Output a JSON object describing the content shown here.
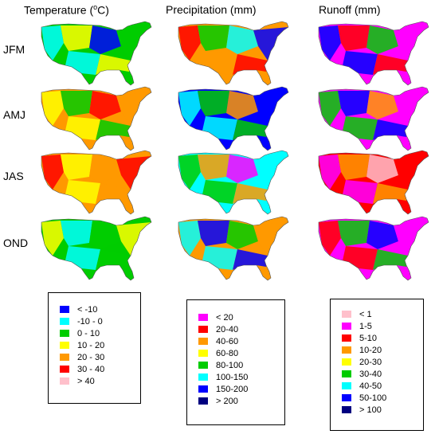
{
  "columns": [
    {
      "title": "Temperature (",
      "unit_sup": "o",
      "unit_tail": "C)"
    },
    {
      "title": "Precipitation (mm)"
    },
    {
      "title": "Runoff (mm)"
    }
  ],
  "rows": [
    "JFM",
    "AMJ",
    "JAS",
    "OND"
  ],
  "legends": [
    {
      "name": "temperature",
      "items": [
        {
          "label": "< -10",
          "color": "#0000ff"
        },
        {
          "label": "-10 - 0",
          "color": "#00ffff"
        },
        {
          "label": "0 - 10",
          "color": "#00cc00"
        },
        {
          "label": "10 - 20",
          "color": "#ffff00"
        },
        {
          "label": "20 - 30",
          "color": "#ff9900"
        },
        {
          "label": "30 - 40",
          "color": "#ff0000"
        },
        {
          "label": "> 40",
          "color": "#ffc0cb"
        }
      ]
    },
    {
      "name": "precipitation",
      "items": [
        {
          "label": "< 20",
          "color": "#ff00ff"
        },
        {
          "label": "20-40",
          "color": "#ff0000"
        },
        {
          "label": "40-60",
          "color": "#ff9900"
        },
        {
          "label": "60-80",
          "color": "#ffff00"
        },
        {
          "label": "80-100",
          "color": "#00cc00"
        },
        {
          "label": "100-150",
          "color": "#00ffff"
        },
        {
          "label": "150-200",
          "color": "#0000ff"
        },
        {
          "label": "> 200",
          "color": "#000080"
        }
      ]
    },
    {
      "name": "runoff",
      "items": [
        {
          "label": "< 1",
          "color": "#ffc0cb"
        },
        {
          "label": "1-5",
          "color": "#ff00ff"
        },
        {
          "label": "5-10",
          "color": "#ff0000"
        },
        {
          "label": "10-20",
          "color": "#ff9900"
        },
        {
          "label": "20-30",
          "color": "#ffff00"
        },
        {
          "label": "30-40",
          "color": "#00cc00"
        },
        {
          "label": "40-50",
          "color": "#00ffff"
        },
        {
          "label": "50-100",
          "color": "#0000ff"
        },
        {
          "label": "> 100",
          "color": "#000080"
        }
      ]
    }
  ],
  "maps": [
    {
      "row": "JFM",
      "column": "Temperature",
      "dominant_colors": [
        "#00cc00",
        "#00ffff",
        "#ffff00",
        "#0000ff"
      ]
    },
    {
      "row": "JFM",
      "column": "Precipitation",
      "dominant_colors": [
        "#ff9900",
        "#ff0000",
        "#00cc00",
        "#00ffff",
        "#0000ff"
      ]
    },
    {
      "row": "JFM",
      "column": "Runoff",
      "dominant_colors": [
        "#ff00ff",
        "#0000ff",
        "#ff0000",
        "#00cc00"
      ]
    },
    {
      "row": "AMJ",
      "column": "Temperature",
      "dominant_colors": [
        "#ff9900",
        "#ffff00",
        "#00cc00",
        "#ff0000"
      ]
    },
    {
      "row": "AMJ",
      "column": "Precipitation",
      "dominant_colors": [
        "#0000ff",
        "#00ffff",
        "#00cc00",
        "#ff9900"
      ]
    },
    {
      "row": "AMJ",
      "column": "Runoff",
      "dominant_colors": [
        "#ff00ff",
        "#00cc00",
        "#0000ff",
        "#ff9900"
      ]
    },
    {
      "row": "JAS",
      "column": "Temperature",
      "dominant_colors": [
        "#ff9900",
        "#ff0000",
        "#ffff00"
      ]
    },
    {
      "row": "JAS",
      "column": "Precipitation",
      "dominant_colors": [
        "#00ffff",
        "#00cc00",
        "#ff9900",
        "#ff00ff"
      ]
    },
    {
      "row": "JAS",
      "column": "Runoff",
      "dominant_colors": [
        "#ff0000",
        "#ff00ff",
        "#ff9900",
        "#ffc0cb"
      ]
    },
    {
      "row": "OND",
      "column": "Temperature",
      "dominant_colors": [
        "#00cc00",
        "#ffff00",
        "#00ffff"
      ]
    },
    {
      "row": "OND",
      "column": "Precipitation",
      "dominant_colors": [
        "#ff9900",
        "#00ffff",
        "#0000ff",
        "#00cc00"
      ]
    },
    {
      "row": "OND",
      "column": "Runoff",
      "dominant_colors": [
        "#ff00ff",
        "#ff0000",
        "#00cc00",
        "#0000ff"
      ]
    }
  ]
}
